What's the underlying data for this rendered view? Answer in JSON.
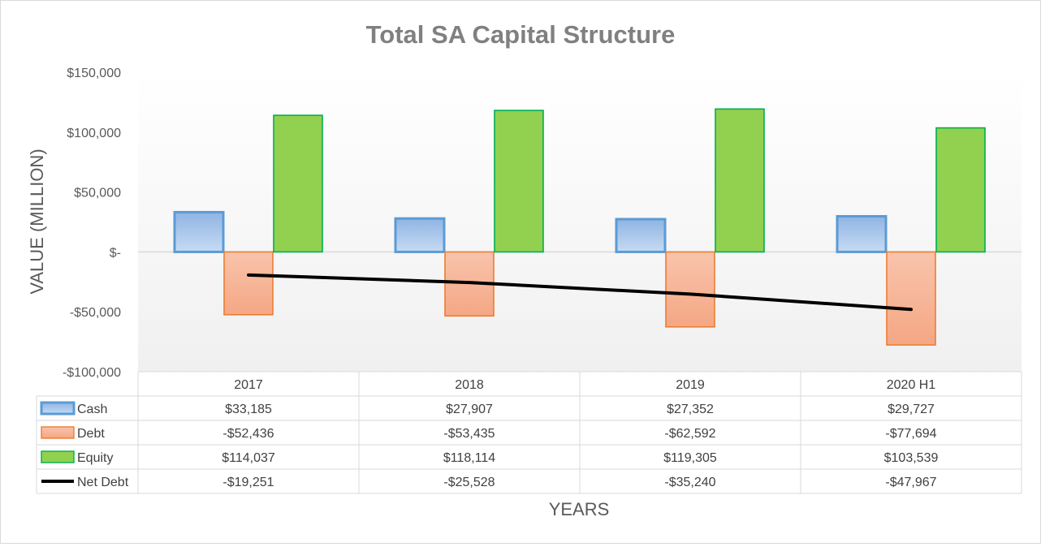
{
  "chart_data": {
    "type": "bar",
    "title": "Total SA Capital Structure",
    "xlabel": "YEARS",
    "ylabel": "VALUE (MILLION)",
    "ylim": [
      -100000,
      150000
    ],
    "yticks": [
      {
        "value": 150000,
        "label": "$150,000"
      },
      {
        "value": 100000,
        "label": "$100,000"
      },
      {
        "value": 50000,
        "label": "$50,000"
      },
      {
        "value": 0,
        "label": "$-"
      },
      {
        "value": -50000,
        "label": "-$50,000"
      },
      {
        "value": -100000,
        "label": "-$100,000"
      }
    ],
    "categories": [
      "2017",
      "2018",
      "2019",
      "2020 H1"
    ],
    "series": [
      {
        "name": "Cash",
        "kind": "bar",
        "fill": "#a9c8ec",
        "stroke": "#5b9bd5",
        "values": [
          33185,
          27907,
          27352,
          29727
        ],
        "table_values": [
          "$33,185",
          "$27,907",
          "$27,352",
          "$29,727"
        ]
      },
      {
        "name": "Debt",
        "kind": "bar",
        "fill": "#f7b79a",
        "stroke": "#ed7d31",
        "values": [
          -52436,
          -53435,
          -62592,
          -77694
        ],
        "table_values": [
          "-$52,436",
          "-$53,435",
          "-$62,592",
          "-$77,694"
        ]
      },
      {
        "name": "Equity",
        "kind": "bar",
        "fill": "#92d050",
        "stroke": "#00b050",
        "values": [
          114037,
          118114,
          119305,
          103539
        ],
        "table_values": [
          "$114,037",
          "$118,114",
          "$119,305",
          "$103,539"
        ]
      },
      {
        "name": "Net Debt",
        "kind": "line",
        "stroke": "#000000",
        "values": [
          -19251,
          -25528,
          -35240,
          -47967
        ],
        "table_values": [
          "-$19,251",
          "-$25,528",
          "-$35,240",
          "-$47,967"
        ]
      }
    ],
    "grid": false,
    "legend": "data-table"
  }
}
